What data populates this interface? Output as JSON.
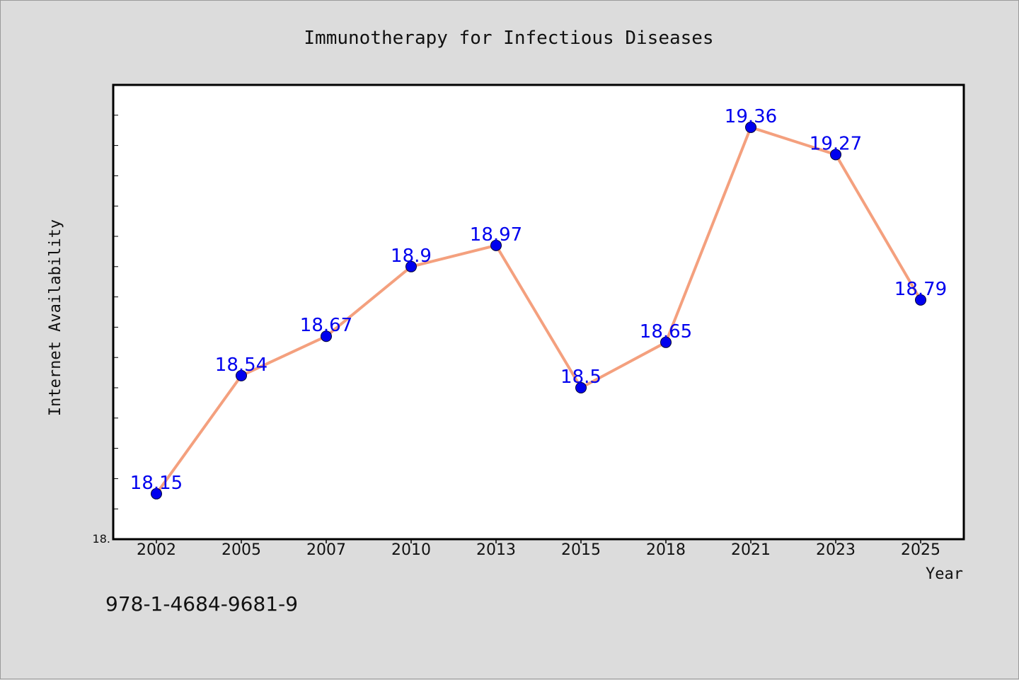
{
  "footer_code": "978-1-4684-9681-9",
  "colors": {
    "background": "#dcdcdc",
    "plot_background": "#ffffff",
    "line": "#f4a07e",
    "marker": "#0000ee",
    "data_label": "#0000ee"
  },
  "chart_data": {
    "type": "line",
    "title": "Immunotherapy for Infectious Diseases",
    "xlabel": "Year",
    "ylabel": "Internet Availability",
    "categories": [
      "2002",
      "2005",
      "2007",
      "2010",
      "2013",
      "2015",
      "2018",
      "2021",
      "2023",
      "2025"
    ],
    "series": [
      {
        "values": [
          18.15,
          18.54,
          18.67,
          18.9,
          18.97,
          18.5,
          18.65,
          19.36,
          19.27,
          18.79
        ],
        "labels": [
          "18.15",
          "18.54",
          "18.67",
          "18.9",
          "18.97",
          "18.5",
          "18.65",
          "19.36",
          "19.27",
          "18.79"
        ]
      }
    ],
    "ylim": [
      18.0,
      19.5
    ],
    "ytick_labels": [
      {
        "value": 18.0,
        "label": "18."
      }
    ],
    "ytick_step": 0.1,
    "grid": false,
    "legend": "none"
  }
}
